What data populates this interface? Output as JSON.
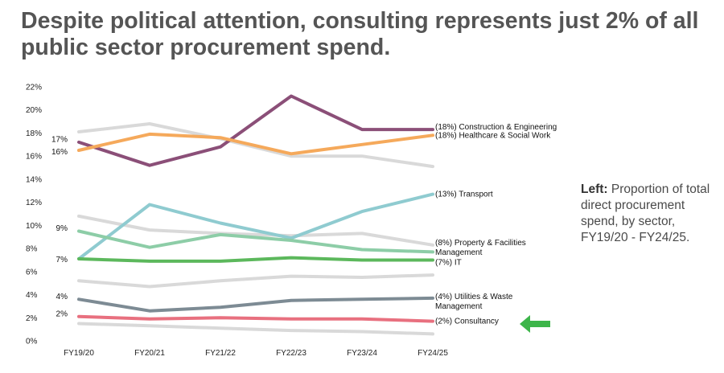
{
  "title": "Despite political attention, consulting represents just 2% of all public sector procurement spend.",
  "side_note": {
    "bold": "Left:",
    "text": "Proportion of total direct procurement spend, by sector, FY19/20 - FY24/25."
  },
  "highlight_arrow": {
    "icon": "left-arrow-icon",
    "color": "#3db54a"
  },
  "chart_data": {
    "type": "line",
    "x": [
      "FY19/20",
      "FY20/21",
      "FY21/22",
      "FY22/23",
      "FY23/24",
      "FY24/25"
    ],
    "ylim": [
      0,
      22
    ],
    "yticks": [
      0,
      2,
      4,
      6,
      8,
      10,
      12,
      14,
      16,
      18,
      20,
      22
    ],
    "ytick_labels": [
      "0%",
      "2%",
      "4%",
      "6%",
      "8%",
      "10%",
      "12%",
      "14%",
      "16%",
      "18%",
      "20%",
      "22%"
    ],
    "grid": false,
    "series": [
      {
        "label": "",
        "color": "#d9d9d9",
        "values": [
          18.1,
          18.8,
          17.5,
          16.0,
          16.0,
          15.1
        ]
      },
      {
        "label": "",
        "color": "#d9d9d9",
        "values": [
          10.8,
          9.6,
          9.3,
          9.1,
          9.3,
          8.3
        ]
      },
      {
        "label": "",
        "color": "#d9d9d9",
        "values": [
          5.2,
          4.7,
          5.2,
          5.6,
          5.5,
          5.7
        ]
      },
      {
        "label": "",
        "color": "#d9d9d9",
        "values": [
          1.5,
          1.3,
          1.1,
          0.9,
          0.8,
          0.6
        ]
      },
      {
        "label": "(18%) Construction & Engineering",
        "start_label": "17%",
        "color": "#8b4f78",
        "values": [
          17.2,
          15.2,
          16.8,
          21.2,
          18.3,
          18.3
        ]
      },
      {
        "label": "(18%) Healthcare & Social Work",
        "start_label": "16%",
        "color": "#f5a95b",
        "values": [
          16.5,
          17.9,
          17.6,
          16.2,
          17.0,
          17.8
        ]
      },
      {
        "label": "(13%) Transport",
        "color": "#8fcbd0",
        "values": [
          7.1,
          11.8,
          10.2,
          8.9,
          11.2,
          12.7
        ]
      },
      {
        "label": "(8%) Property & Facilities Management",
        "start_label": "9%",
        "color": "#8dcda7",
        "values": [
          9.5,
          8.1,
          9.2,
          8.7,
          7.9,
          7.7
        ]
      },
      {
        "label": "(7%) IT",
        "start_label": "7%",
        "color": "#5cb85c",
        "values": [
          7.1,
          6.9,
          6.9,
          7.2,
          7.0,
          7.0
        ]
      },
      {
        "label": "(4%) Utilities & Waste Management",
        "start_label": "4%",
        "color": "#7d8b94",
        "values": [
          3.6,
          2.6,
          2.9,
          3.5,
          3.6,
          3.7
        ]
      },
      {
        "label": "(2%) Consultancy",
        "start_label": "2%",
        "color": "#e8707f",
        "values": [
          2.1,
          1.9,
          2.0,
          1.9,
          1.9,
          1.7
        ]
      }
    ]
  }
}
